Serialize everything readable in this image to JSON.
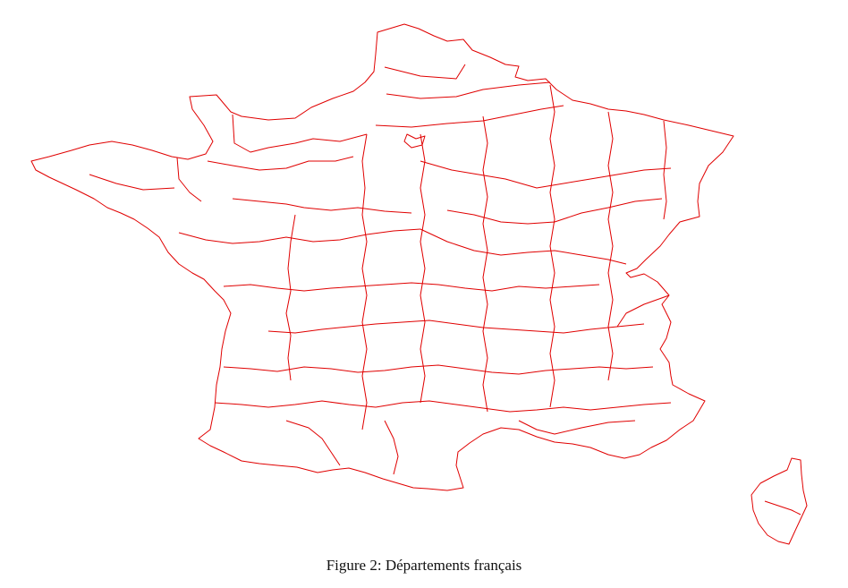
{
  "figure": {
    "caption": "Figure 2: Départements français"
  },
  "style": {
    "border_color": "#e00000",
    "background": "#ffffff"
  }
}
